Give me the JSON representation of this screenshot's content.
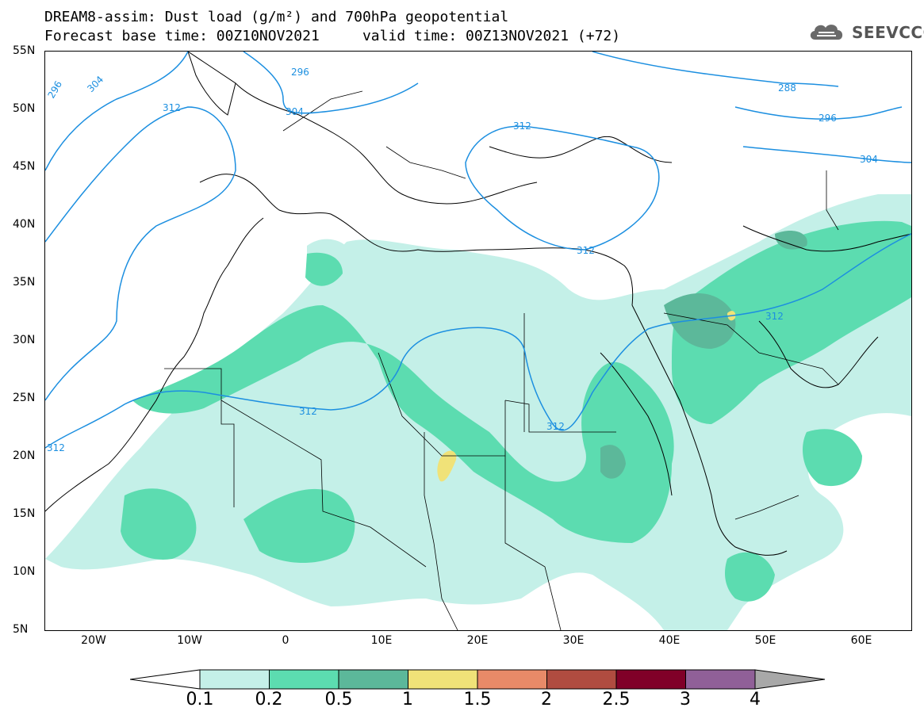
{
  "title": {
    "line1": "DREAM8-assim: Dust load (g/m²) and 700hPa geopotential",
    "line2": "Forecast base time: 00Z10NOV2021     valid time: 00Z13NOV2021 (+72)"
  },
  "logo": {
    "icon": "cloud-icon",
    "text": "SEEVCCC"
  },
  "axes": {
    "lat_labels": [
      "55N",
      "50N",
      "45N",
      "40N",
      "35N",
      "30N",
      "25N",
      "20N",
      "15N",
      "10N",
      "5N"
    ],
    "lon_labels": [
      "20W",
      "10W",
      "0",
      "10E",
      "20E",
      "30E",
      "40E",
      "50E",
      "60E"
    ]
  },
  "contours": {
    "labels": [
      "296",
      "304",
      "296",
      "304",
      "312",
      "312",
      "312",
      "312",
      "312",
      "312",
      "288",
      "296",
      "304",
      "312"
    ]
  },
  "colorbar": {
    "ticks": [
      "0.1",
      "0.2",
      "0.5",
      "1",
      "1.5",
      "2",
      "2.5",
      "3",
      "4"
    ],
    "colors": [
      "#c4f0e8",
      "#5cdcb0",
      "#5cb89a",
      "#f0e278",
      "#e88a68",
      "#b04c40",
      "#800028",
      "#906098"
    ],
    "under_color": "#ffffff",
    "over_color": "#a8a8a8"
  },
  "colors": {
    "contour": "#1c8fe0",
    "dust_low": "#c4f0e8",
    "dust_mid": "#5cdcb0",
    "dust_high": "#5cb89a",
    "dust_peak": "#f0e278"
  }
}
